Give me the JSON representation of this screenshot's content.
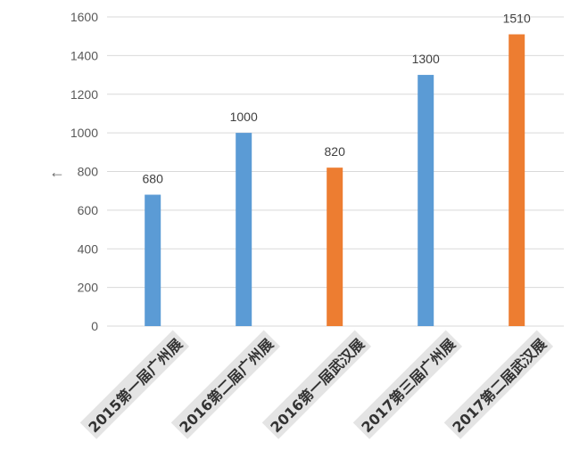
{
  "chart_data": {
    "type": "bar",
    "categories": [
      "2015第一届广州展",
      "2016第二届广州展",
      "2016第一届武汉展",
      "2017第三届广州展",
      "2017第二届武汉展"
    ],
    "values": [
      680,
      1000,
      820,
      1300,
      1510
    ],
    "bar_colors": [
      "#5b9bd5",
      "#5b9bd5",
      "#ed7d31",
      "#5b9bd5",
      "#ed7d31"
    ],
    "data_labels": [
      "680",
      "1000",
      "820",
      "1300",
      "1510"
    ],
    "ylim": [
      0,
      1600
    ],
    "yticks": [
      "0",
      "200",
      "400",
      "600",
      "800",
      "1000",
      "1200",
      "1400",
      "1600"
    ],
    "grid": true,
    "title": "",
    "xlabel": "",
    "ylabel": ""
  },
  "icons": {
    "left_arrow": "←"
  }
}
